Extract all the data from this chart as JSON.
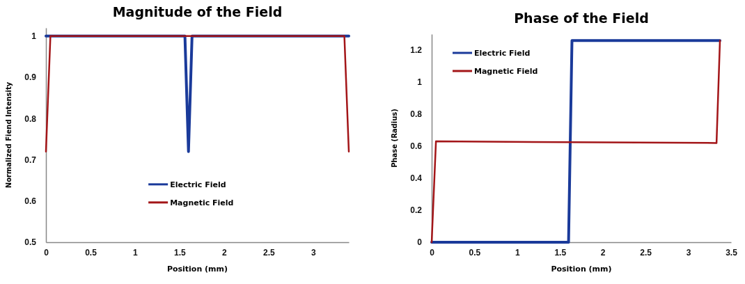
{
  "chart_data": [
    {
      "type": "line",
      "title": "Magnitude of the Field",
      "xlabel": "Position (mm)",
      "ylabel": "Normalized Fiend Intensity",
      "xlim": [
        0,
        3.4
      ],
      "xticks": [
        0,
        0.5,
        1,
        1.5,
        2,
        2.5,
        3
      ],
      "ylim": [
        0.5,
        1.02
      ],
      "yticks": [
        0.5,
        0.6,
        0.7,
        0.8,
        0.9,
        1
      ],
      "legend": "bottom",
      "grid": false,
      "series": [
        {
          "name": "Electric Field",
          "color": "#1a3a9a",
          "x": [
            0,
            1.56,
            1.6,
            1.64,
            3.4
          ],
          "values": [
            1,
            1,
            0.72,
            1,
            1
          ]
        },
        {
          "name": "Magnetic Field",
          "color": "#a31518",
          "x": [
            0,
            0.05,
            3.35,
            3.4
          ],
          "values": [
            0.72,
            1,
            1,
            0.72
          ]
        }
      ]
    },
    {
      "type": "line",
      "title": "Phase of the Field",
      "xlabel": "Position (mm)",
      "ylabel": "Phase (Radius)",
      "xlim": [
        0,
        3.5
      ],
      "xticks": [
        0,
        0.5,
        1,
        1.5,
        2,
        2.5,
        3,
        3.5
      ],
      "ylim": [
        0,
        1.3
      ],
      "yticks": [
        0,
        0.2,
        0.4,
        0.6,
        0.8,
        1,
        1.2
      ],
      "legend": "top left",
      "grid": false,
      "series": [
        {
          "name": "Electric Field",
          "color": "#1a3a9a",
          "x": [
            0,
            1.6,
            1.64,
            3.37
          ],
          "values": [
            0,
            0,
            1.26,
            1.26
          ]
        },
        {
          "name": "Magnetic Field",
          "color": "#a31518",
          "x": [
            0,
            0.05,
            3.33,
            3.37
          ],
          "values": [
            0,
            0.63,
            0.62,
            1.26
          ]
        }
      ]
    }
  ]
}
